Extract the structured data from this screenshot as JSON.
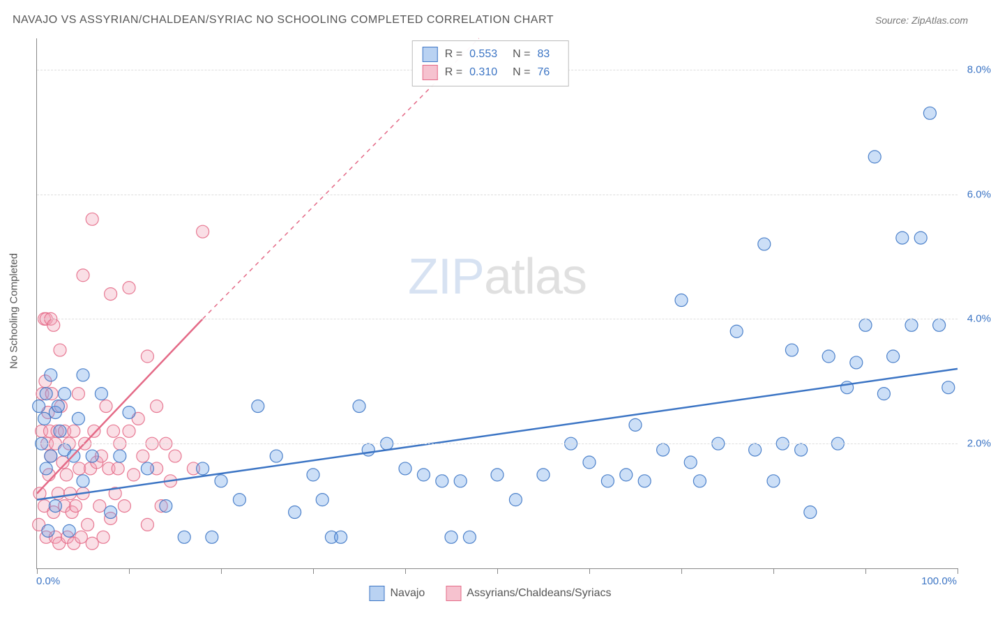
{
  "header": {
    "title": "NAVAJO VS ASSYRIAN/CHALDEAN/SYRIAC NO SCHOOLING COMPLETED CORRELATION CHART",
    "source_prefix": "Source: ",
    "source_name": "ZipAtlas.com"
  },
  "chart": {
    "type": "scatter",
    "y_label": "No Schooling Completed",
    "x_min_label": "0.0%",
    "x_max_label": "100.0%",
    "background_color": "#ffffff",
    "grid_color": "#dddddd",
    "axis_color": "#888888",
    "tick_label_color": "#3b74c4",
    "xlim": [
      0,
      100
    ],
    "ylim": [
      0,
      8.5
    ],
    "y_ticks": [
      {
        "v": 2.0,
        "label": "2.0%"
      },
      {
        "v": 4.0,
        "label": "4.0%"
      },
      {
        "v": 6.0,
        "label": "6.0%"
      },
      {
        "v": 8.0,
        "label": "8.0%"
      }
    ],
    "x_tick_positions": [
      0,
      10,
      20,
      30,
      40,
      50,
      60,
      70,
      80,
      90,
      100
    ],
    "marker_radius": 9,
    "marker_fill_opacity": 0.35,
    "marker_stroke_opacity": 0.9,
    "line_width_solid": 2.5,
    "line_width_dashed": 1.5,
    "dash_pattern": "6,6",
    "watermark": {
      "zip": "ZIP",
      "atlas": "atlas"
    },
    "series": [
      {
        "name": "Navajo",
        "color": "#6ca4e8",
        "stroke": "#3b74c4",
        "swatch_fill": "#b9d2f2",
        "swatch_border": "#3b74c4",
        "R": "0.553",
        "N": "83",
        "trend_solid": {
          "x1": 0,
          "y1": 1.1,
          "x2": 100,
          "y2": 3.2
        },
        "trend_dashed": null,
        "points": [
          [
            0.2,
            2.6
          ],
          [
            0.5,
            2.0
          ],
          [
            0.8,
            2.4
          ],
          [
            1,
            1.6
          ],
          [
            1,
            2.8
          ],
          [
            1.2,
            0.6
          ],
          [
            1.5,
            1.8
          ],
          [
            1.5,
            3.1
          ],
          [
            2,
            2.5
          ],
          [
            2,
            1.0
          ],
          [
            2.3,
            2.6
          ],
          [
            2.5,
            2.2
          ],
          [
            3,
            1.9
          ],
          [
            3,
            2.8
          ],
          [
            3.5,
            0.6
          ],
          [
            4,
            1.8
          ],
          [
            4.5,
            2.4
          ],
          [
            5,
            3.1
          ],
          [
            5,
            1.4
          ],
          [
            6,
            1.8
          ],
          [
            7,
            2.8
          ],
          [
            8,
            0.9
          ],
          [
            9,
            1.8
          ],
          [
            10,
            2.5
          ],
          [
            12,
            1.6
          ],
          [
            14,
            1.0
          ],
          [
            16,
            0.5
          ],
          [
            18,
            1.6
          ],
          [
            19,
            0.5
          ],
          [
            20,
            1.4
          ],
          [
            22,
            1.1
          ],
          [
            24,
            2.6
          ],
          [
            26,
            1.8
          ],
          [
            28,
            0.9
          ],
          [
            30,
            1.5
          ],
          [
            31,
            1.1
          ],
          [
            32,
            0.5
          ],
          [
            33,
            0.5
          ],
          [
            35,
            2.6
          ],
          [
            36,
            1.9
          ],
          [
            38,
            2.0
          ],
          [
            40,
            1.6
          ],
          [
            42,
            1.5
          ],
          [
            44,
            1.4
          ],
          [
            45,
            0.5
          ],
          [
            46,
            1.4
          ],
          [
            47,
            0.5
          ],
          [
            50,
            1.5
          ],
          [
            52,
            1.1
          ],
          [
            55,
            1.5
          ],
          [
            58,
            2.0
          ],
          [
            60,
            1.7
          ],
          [
            62,
            1.4
          ],
          [
            64,
            1.5
          ],
          [
            65,
            2.3
          ],
          [
            66,
            1.4
          ],
          [
            68,
            1.9
          ],
          [
            70,
            4.3
          ],
          [
            71,
            1.7
          ],
          [
            72,
            1.4
          ],
          [
            74,
            2.0
          ],
          [
            76,
            3.8
          ],
          [
            78,
            1.9
          ],
          [
            79,
            5.2
          ],
          [
            80,
            1.4
          ],
          [
            81,
            2.0
          ],
          [
            82,
            3.5
          ],
          [
            83,
            1.9
          ],
          [
            84,
            0.9
          ],
          [
            86,
            3.4
          ],
          [
            87,
            2.0
          ],
          [
            88,
            2.9
          ],
          [
            89,
            3.3
          ],
          [
            90,
            3.9
          ],
          [
            91,
            6.6
          ],
          [
            92,
            2.8
          ],
          [
            93,
            3.4
          ],
          [
            94,
            5.3
          ],
          [
            95,
            3.9
          ],
          [
            96,
            5.3
          ],
          [
            97,
            7.3
          ],
          [
            98,
            3.9
          ],
          [
            99,
            2.9
          ]
        ]
      },
      {
        "name": "Assyrians/Chaldeans/Syriacs",
        "color": "#f2a3b6",
        "stroke": "#e46a87",
        "swatch_fill": "#f6c2cf",
        "swatch_border": "#e46a87",
        "R": "0.310",
        "N": "76",
        "trend_solid": {
          "x1": 0,
          "y1": 1.2,
          "x2": 18,
          "y2": 4.0
        },
        "trend_dashed": {
          "x1": 18,
          "y1": 4.0,
          "x2": 48,
          "y2": 8.5
        },
        "points": [
          [
            0.2,
            0.7
          ],
          [
            0.3,
            1.2
          ],
          [
            0.5,
            2.2
          ],
          [
            0.6,
            2.8
          ],
          [
            0.8,
            1.0
          ],
          [
            0.8,
            4.0
          ],
          [
            0.9,
            3.0
          ],
          [
            1,
            4.0
          ],
          [
            1,
            0.5
          ],
          [
            1.1,
            2.0
          ],
          [
            1.2,
            2.5
          ],
          [
            1.3,
            1.5
          ],
          [
            1.4,
            2.2
          ],
          [
            1.5,
            4.0
          ],
          [
            1.5,
            1.8
          ],
          [
            1.6,
            2.8
          ],
          [
            1.8,
            3.9
          ],
          [
            1.8,
            0.9
          ],
          [
            2,
            2.0
          ],
          [
            2,
            0.5
          ],
          [
            2.2,
            2.2
          ],
          [
            2.3,
            1.2
          ],
          [
            2.4,
            0.4
          ],
          [
            2.5,
            3.5
          ],
          [
            2.6,
            2.6
          ],
          [
            2.8,
            1.7
          ],
          [
            3,
            1.0
          ],
          [
            3,
            2.2
          ],
          [
            3.2,
            1.5
          ],
          [
            3.3,
            0.5
          ],
          [
            3.5,
            2.0
          ],
          [
            3.6,
            1.2
          ],
          [
            3.8,
            0.9
          ],
          [
            4,
            2.2
          ],
          [
            4,
            0.4
          ],
          [
            4.2,
            1.0
          ],
          [
            4.5,
            2.8
          ],
          [
            4.6,
            1.6
          ],
          [
            4.8,
            0.5
          ],
          [
            5,
            4.7
          ],
          [
            5,
            1.2
          ],
          [
            5.2,
            2.0
          ],
          [
            5.5,
            0.7
          ],
          [
            5.8,
            1.6
          ],
          [
            6,
            0.4
          ],
          [
            6,
            5.6
          ],
          [
            6.2,
            2.2
          ],
          [
            6.5,
            1.7
          ],
          [
            6.8,
            1.0
          ],
          [
            7,
            1.8
          ],
          [
            7.2,
            0.5
          ],
          [
            7.5,
            2.6
          ],
          [
            7.8,
            1.6
          ],
          [
            8,
            4.4
          ],
          [
            8,
            0.8
          ],
          [
            8.3,
            2.2
          ],
          [
            8.5,
            1.2
          ],
          [
            8.8,
            1.6
          ],
          [
            9,
            2.0
          ],
          [
            9.5,
            1.0
          ],
          [
            10,
            2.2
          ],
          [
            10,
            4.5
          ],
          [
            10.5,
            1.5
          ],
          [
            11,
            2.4
          ],
          [
            11.5,
            1.8
          ],
          [
            12,
            3.4
          ],
          [
            12,
            0.7
          ],
          [
            12.5,
            2.0
          ],
          [
            13,
            2.6
          ],
          [
            13,
            1.6
          ],
          [
            13.5,
            1.0
          ],
          [
            14,
            2.0
          ],
          [
            14.5,
            1.4
          ],
          [
            15,
            1.8
          ],
          [
            17,
            1.6
          ],
          [
            18,
            5.4
          ]
        ]
      }
    ],
    "bottom_legend": [
      {
        "label": "Navajo",
        "fill": "#b9d2f2",
        "border": "#3b74c4"
      },
      {
        "label": "Assyrians/Chaldeans/Syriacs",
        "fill": "#f6c2cf",
        "border": "#e46a87"
      }
    ]
  }
}
